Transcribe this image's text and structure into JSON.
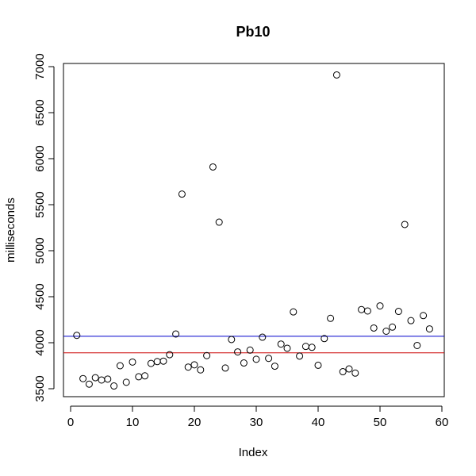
{
  "chart_data": {
    "type": "scatter",
    "title": "Pb10",
    "xlabel": "Index",
    "ylabel": "milliseconds",
    "xlim": [
      0,
      60
    ],
    "ylim": [
      3400,
      7000
    ],
    "x_ticks": [
      0,
      10,
      20,
      30,
      40,
      50,
      60
    ],
    "y_ticks": [
      3500,
      4000,
      4500,
      5000,
      5500,
      6000,
      6500,
      7000
    ],
    "grid": false,
    "point_style": "open-circle",
    "x": [
      1,
      2,
      3,
      4,
      5,
      6,
      7,
      8,
      9,
      10,
      11,
      12,
      13,
      14,
      15,
      16,
      17,
      18,
      19,
      20,
      21,
      22,
      23,
      24,
      25,
      26,
      27,
      28,
      29,
      30,
      31,
      32,
      33,
      34,
      35,
      36,
      37,
      38,
      39,
      40,
      41,
      42,
      43,
      44,
      45,
      46,
      47,
      48,
      49,
      50,
      51,
      52,
      53,
      54,
      55,
      56,
      57,
      58
    ],
    "y": [
      4080,
      3610,
      3550,
      3620,
      3595,
      3605,
      3530,
      3750,
      3570,
      3790,
      3630,
      3640,
      3775,
      3795,
      3800,
      3870,
      4095,
      5615,
      3735,
      3760,
      3705,
      3860,
      5910,
      5310,
      3725,
      4035,
      3900,
      3780,
      3920,
      3820,
      4060,
      3830,
      3745,
      3985,
      3940,
      4335,
      3855,
      3960,
      3950,
      3755,
      4045,
      4265,
      6910,
      3685,
      3715,
      3670,
      4360,
      4345,
      4160,
      4400,
      4125,
      4170,
      4340,
      5285,
      4240,
      3970,
      4295,
      4150
    ],
    "hlines": [
      {
        "y": 4070,
        "color": "#0000cc"
      },
      {
        "y": 3890,
        "color": "#cc0000"
      }
    ]
  }
}
